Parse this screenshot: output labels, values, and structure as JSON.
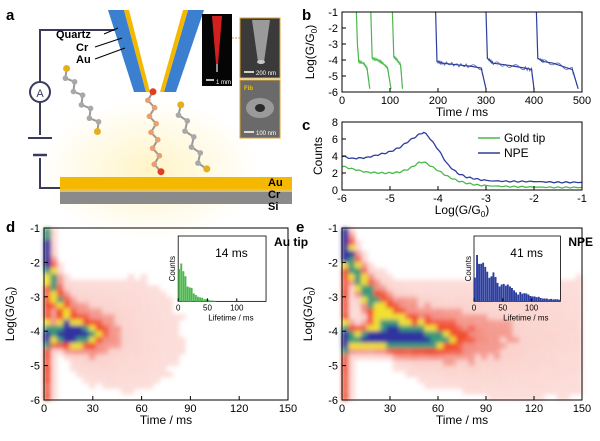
{
  "panel_labels": {
    "a": "a",
    "b": "b",
    "c": "c",
    "d": "d",
    "e": "e"
  },
  "schematic": {
    "layers_tip": [
      "Quartz",
      "Cr",
      "Au"
    ],
    "layers_substrate": [
      "Au",
      "Cr",
      "Si"
    ],
    "ammeter": "A",
    "scale_1": "1 mm",
    "scale_2": "200 nm",
    "scale_3": "100 nm",
    "inset_label": "Fib"
  },
  "colors": {
    "gold": "#f5b800",
    "quartz": "#3a7fd0",
    "green": "#4cb84c",
    "blue": "#2c3e9e",
    "substrate_si": "#8a8a8a"
  },
  "chart_data": [
    {
      "id": "b",
      "type": "line",
      "xlabel": "Time / ms",
      "ylabel": "Log(G/G0)",
      "xlim": [
        0,
        500
      ],
      "ylim": [
        -6,
        -1
      ],
      "xticks": [
        "0",
        "100",
        "200",
        "300",
        "400",
        "500"
      ],
      "yticks": [
        "-1",
        "-2",
        "-3",
        "-4",
        "-5",
        "-6"
      ],
      "series": [
        {
          "color": "green",
          "segments": [
            [
              [
                30,
                -1
              ],
              [
                32,
                -3
              ],
              [
                35,
                -4.1
              ],
              [
                45,
                -4.2
              ],
              [
                52,
                -4.5
              ],
              [
                58,
                -5.8
              ]
            ],
            [
              [
                60,
                -1
              ],
              [
                63,
                -3.9
              ],
              [
                75,
                -4.0
              ],
              [
                85,
                -4.2
              ],
              [
                95,
                -4.5
              ],
              [
                102,
                -5.8
              ]
            ],
            [
              [
                105,
                -1
              ],
              [
                108,
                -3.8
              ],
              [
                115,
                -4.0
              ],
              [
                122,
                -4.3
              ],
              [
                126,
                -5.8
              ]
            ]
          ]
        },
        {
          "color": "blue",
          "segments": [
            [
              [
                195,
                -1
              ],
              [
                198,
                -4.1
              ],
              [
                210,
                -4.2
              ],
              [
                240,
                -4.3
              ],
              [
                270,
                -4.4
              ],
              [
                290,
                -4.5
              ],
              [
                300,
                -5.8
              ]
            ],
            [
              [
                300,
                -1
              ],
              [
                303,
                -3.9
              ],
              [
                315,
                -4.2
              ],
              [
                340,
                -4.3
              ],
              [
                360,
                -4.4
              ],
              [
                380,
                -4.5
              ],
              [
                395,
                -4.6
              ],
              [
                400,
                -5.8
              ]
            ],
            [
              [
                405,
                -1
              ],
              [
                408,
                -3.9
              ],
              [
                420,
                -4.1
              ],
              [
                440,
                -4.2
              ],
              [
                460,
                -4.4
              ],
              [
                480,
                -4.6
              ],
              [
                492,
                -5.8
              ]
            ]
          ]
        }
      ]
    },
    {
      "id": "c",
      "type": "line",
      "xlabel": "Log(G/G0)",
      "ylabel": "Counts",
      "xlim": [
        -6,
        -1
      ],
      "ylim": [
        0,
        8
      ],
      "xticks": [
        "-6",
        "-5",
        "-4",
        "-3",
        "-2",
        "-1"
      ],
      "yticks": [
        "0",
        "2",
        "4",
        "6",
        "8"
      ],
      "legend": {
        "position": "top-right",
        "entries": [
          {
            "name": "Gold tip",
            "color": "green"
          },
          {
            "name": "NPE",
            "color": "blue"
          }
        ]
      },
      "series": [
        {
          "name": "Gold tip",
          "color": "green",
          "x": [
            -6,
            -5.8,
            -5.5,
            -5.2,
            -5.0,
            -4.8,
            -4.6,
            -4.4,
            -4.3,
            -4.2,
            -4.0,
            -3.8,
            -3.6,
            -3.4,
            -3.2,
            -3.0,
            -2.5,
            -2.0,
            -1.5,
            -1.0
          ],
          "y": [
            2.8,
            2.5,
            2.1,
            2.0,
            2.0,
            2.1,
            2.5,
            3.2,
            3.3,
            3.0,
            2.3,
            1.6,
            1.1,
            0.8,
            0.6,
            0.5,
            0.4,
            0.35,
            0.3,
            0.3
          ]
        },
        {
          "name": "NPE",
          "color": "blue",
          "x": [
            -6,
            -5.8,
            -5.5,
            -5.2,
            -5.0,
            -4.8,
            -4.6,
            -4.4,
            -4.3,
            -4.2,
            -4.0,
            -3.8,
            -3.6,
            -3.4,
            -3.2,
            -3.0,
            -2.5,
            -2.0,
            -1.5,
            -1.0
          ],
          "y": [
            4.0,
            3.7,
            3.8,
            4.2,
            4.5,
            5.0,
            5.8,
            6.5,
            6.8,
            6.3,
            4.8,
            3.0,
            2.0,
            1.5,
            1.3,
            1.1,
            1.0,
            1.0,
            0.9,
            0.9
          ]
        }
      ]
    },
    {
      "id": "d",
      "type": "heatmap",
      "xlabel": "Time / ms",
      "ylabel": "Log(G/G0)",
      "xlim": [
        0,
        150
      ],
      "ylim": [
        -6,
        -1
      ],
      "xticks": [
        "0",
        "30",
        "60",
        "90",
        "120",
        "150"
      ],
      "yticks": [
        "-1",
        "-2",
        "-3",
        "-4",
        "-5",
        "-6"
      ],
      "hot_center": {
        "x": 12,
        "y": -4.1
      },
      "inset": {
        "label": "Au tip",
        "value_text": "14 ms",
        "xlabel": "Lifetime / ms",
        "ylabel": "Counts",
        "xticks": [
          "0",
          "50",
          "100"
        ],
        "color": "green",
        "decay_ms": 14
      }
    },
    {
      "id": "e",
      "type": "heatmap",
      "xlabel": "Time / ms",
      "ylabel": "Log(G/G0)",
      "xlim": [
        0,
        150
      ],
      "ylim": [
        -6,
        -1
      ],
      "xticks": [
        "0",
        "30",
        "60",
        "90",
        "120",
        "150"
      ],
      "yticks": [
        "-1",
        "-2",
        "-3",
        "-4",
        "-5",
        "-6"
      ],
      "hot_center": {
        "x": 20,
        "y": -4.2
      },
      "inset": {
        "label": "NPE",
        "value_text": "41 ms",
        "xlabel": "Lifetime / ms",
        "ylabel": "Counts",
        "xticks": [
          "0",
          "50",
          "100"
        ],
        "color": "blue",
        "decay_ms": 41
      }
    }
  ]
}
